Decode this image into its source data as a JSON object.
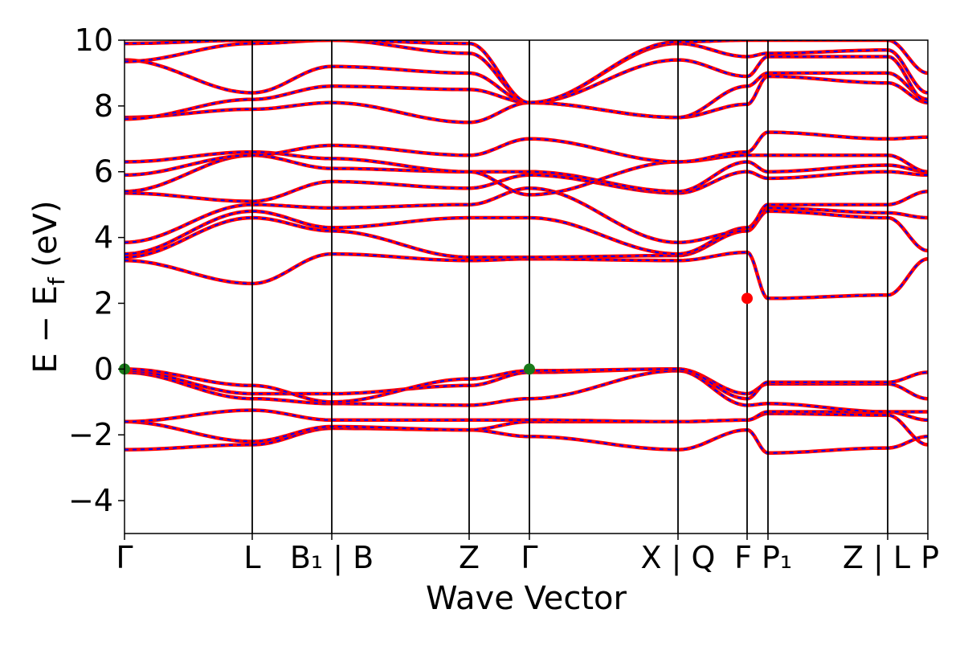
{
  "chart_data": {
    "type": "line",
    "title": "",
    "xlabel": "Wave Vector",
    "ylabel": "E − E_f (eV)",
    "ylabel_main": "E − E",
    "ylabel_sub": "f",
    "ylabel_unit": " (eV)",
    "ylim": [
      -5,
      10
    ],
    "yticks": [
      -4,
      -2,
      0,
      2,
      4,
      6,
      8,
      10
    ],
    "ytick_labels": [
      "−4",
      "−2",
      "0",
      "2",
      "4",
      "6",
      "8",
      "10"
    ],
    "xlim": [
      0,
      1
    ],
    "kpath": [
      {
        "label": "Γ",
        "x": 0.0
      },
      {
        "label": "L",
        "x": 0.159
      },
      {
        "label": "B₁ | B",
        "x": 0.258
      },
      {
        "label": "Z",
        "x": 0.429
      },
      {
        "label": "Γ",
        "x": 0.504
      },
      {
        "label": "X | Q",
        "x": 0.689
      },
      {
        "label": "F",
        "x": 0.775
      },
      {
        "label": "P₁",
        "x": 0.801
      },
      {
        "label": "Z | L",
        "x": 0.95
      },
      {
        "label": "P",
        "x": 1.0
      }
    ],
    "series_styles": [
      {
        "color": "#ff0000",
        "style": "solid"
      },
      {
        "color": "#0000ff",
        "style": "dashed"
      }
    ],
    "markers": [
      {
        "kind": "VBM",
        "x": 0.0,
        "y": 0.0,
        "color": "#1a7a1a"
      },
      {
        "kind": "VBM",
        "x": 0.504,
        "y": 0.0,
        "color": "#1a7a1a"
      },
      {
        "kind": "CBM",
        "x": 0.775,
        "y": 2.15,
        "color": "#ff0000"
      }
    ],
    "bands": [
      [
        -2.45,
        -2.3,
        -1.8,
        -1.85,
        -2.05,
        -2.45,
        -1.85,
        -2.55,
        -2.4,
        -2.05,
        -2.5
      ],
      [
        -1.6,
        -2.2,
        -1.75,
        -1.85,
        -1.6,
        -1.6,
        -1.55,
        -1.35,
        -1.4,
        -2.3,
        -2.3
      ],
      [
        -1.6,
        -1.25,
        -1.55,
        -1.55,
        -1.55,
        -1.6,
        -1.55,
        -1.3,
        -1.3,
        -1.55,
        -1.35
      ],
      [
        -0.1,
        -0.9,
        -1.05,
        -1.1,
        -0.9,
        -0.05,
        -1.1,
        -1.05,
        -1.3,
        -1.3,
        -1.4
      ],
      [
        -0.05,
        -0.75,
        -0.75,
        -0.5,
        -0.1,
        0.0,
        -0.75,
        -0.45,
        -0.45,
        -0.9,
        -0.5
      ],
      [
        0.0,
        -0.5,
        -1.0,
        -0.3,
        -0.05,
        0.0,
        -0.9,
        -0.4,
        -0.4,
        -0.1,
        -0.45
      ],
      [
        3.3,
        2.6,
        3.5,
        3.3,
        3.35,
        3.3,
        3.55,
        2.15,
        2.25,
        3.35,
        2.25
      ],
      [
        3.4,
        4.6,
        4.2,
        3.4,
        3.4,
        3.45,
        4.2,
        4.8,
        4.6,
        3.6,
        4.8
      ],
      [
        3.5,
        4.8,
        4.3,
        4.6,
        4.6,
        3.5,
        4.3,
        4.9,
        4.75,
        4.6,
        4.9
      ],
      [
        3.85,
        5.0,
        4.9,
        5.0,
        5.5,
        3.85,
        4.2,
        5.0,
        5.0,
        5.4,
        5.1
      ],
      [
        5.35,
        5.1,
        5.7,
        5.5,
        5.9,
        5.35,
        6.0,
        5.8,
        6.0,
        5.9,
        6.2
      ],
      [
        5.4,
        6.5,
        6.1,
        6.0,
        6.0,
        5.4,
        6.3,
        6.0,
        6.2,
        6.0,
        6.5
      ],
      [
        6.3,
        6.6,
        6.4,
        6.0,
        5.3,
        6.3,
        6.5,
        6.5,
        6.5,
        6.0,
        6.55
      ],
      [
        5.9,
        6.5,
        6.8,
        6.5,
        7.0,
        6.3,
        6.6,
        7.2,
        7.0,
        7.05,
        7.4
      ],
      [
        7.65,
        7.9,
        8.1,
        7.5,
        8.1,
        7.65,
        8.05,
        8.9,
        8.7,
        8.1,
        8.4
      ],
      [
        7.6,
        8.2,
        8.6,
        8.5,
        8.1,
        7.65,
        8.6,
        9.0,
        9.0,
        8.2,
        8.7
      ],
      [
        9.4,
        8.4,
        9.2,
        9.0,
        8.1,
        9.4,
        8.9,
        9.5,
        9.5,
        8.1,
        9.6
      ],
      [
        9.35,
        9.9,
        10.0,
        9.6,
        8.1,
        9.9,
        9.5,
        9.6,
        9.7,
        8.4,
        9.9
      ],
      [
        9.9,
        10.0,
        10.0,
        9.9,
        8.1,
        9.95,
        10.0,
        10.0,
        10.0,
        9.0,
        10.0
      ]
    ]
  }
}
